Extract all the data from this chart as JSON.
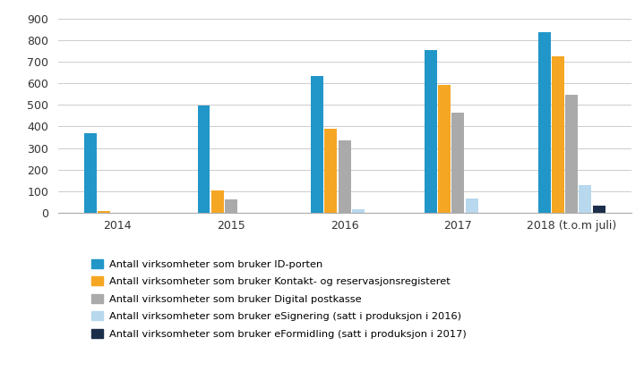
{
  "years": [
    "2014",
    "2015",
    "2016",
    "2017",
    "2018 (t.o.m juli)"
  ],
  "series": {
    "ID-porten": [
      370,
      497,
      633,
      755,
      835
    ],
    "Kontakt- og reservasjonsregisteret": [
      10,
      105,
      390,
      590,
      725
    ],
    "Digital postkasse": [
      0,
      62,
      335,
      465,
      547
    ],
    "eSignering": [
      0,
      0,
      15,
      68,
      130
    ],
    "eFormidling": [
      0,
      0,
      0,
      0,
      35
    ]
  },
  "colors": {
    "ID-porten": "#2196c8",
    "Kontakt- og reservasjonsregisteret": "#f5a623",
    "Digital postkasse": "#aaaaaa",
    "eSignering": "#b8d8ee",
    "eFormidling": "#1c2f4a"
  },
  "legend_labels": [
    "Antall virksomheter som bruker ID-porten",
    "Antall virksomheter som bruker Kontakt- og reservasjonsregisteret",
    "Antall virksomheter som bruker Digital postkasse",
    "Antall virksomheter som bruker eSignering (satt i produksjon i 2016)",
    "Antall virksomheter som bruker eFormidling (satt i produksjon i 2017)"
  ],
  "ylim": [
    0,
    950
  ],
  "yticks": [
    0,
    100,
    200,
    300,
    400,
    500,
    600,
    700,
    800,
    900
  ],
  "background_color": "#ffffff",
  "grid_color": "#cccccc",
  "bar_width": 0.11,
  "bar_gap": 0.01
}
